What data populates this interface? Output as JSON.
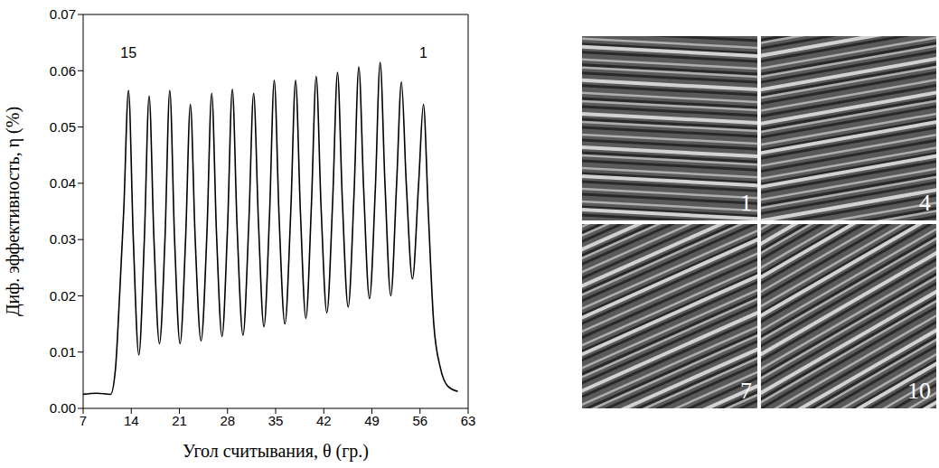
{
  "chart_data": {
    "type": "line",
    "x_label": "Угол считывания, θ (гр.)",
    "y_label": "Диф. эффективность, η (%)",
    "color": "#000000",
    "grid": false,
    "xlim": [
      7,
      63
    ],
    "xticks": [
      7,
      14,
      21,
      28,
      35,
      42,
      49,
      56,
      63
    ],
    "ylim": [
      0,
      0.07
    ],
    "yticks": [
      {
        "value": 0,
        "label": "0.00"
      },
      0.01,
      0.02,
      0.03,
      0.04,
      0.05,
      0.06,
      0.07
    ],
    "x": [
      7,
      9,
      11,
      11.7,
      12.3,
      12.9,
      13.6,
      14.3,
      15.1,
      15.9,
      16.6,
      17.3,
      18.1,
      18.9,
      19.6,
      20.3,
      21.1,
      21.9,
      22.6,
      23.3,
      24.15,
      25.0,
      25.7,
      26.4,
      27.2,
      28.0,
      28.7,
      29.4,
      30.25,
      31.1,
      31.8,
      32.5,
      33.3,
      34.1,
      34.8,
      35.5,
      36.35,
      37.2,
      37.9,
      38.6,
      39.4,
      40.2,
      40.9,
      41.6,
      42.45,
      43.3,
      44.0,
      44.7,
      45.55,
      46.4,
      47.1,
      47.8,
      48.65,
      49.5,
      50.2,
      50.9,
      51.75,
      52.6,
      53.3,
      54.0,
      54.9,
      55.8,
      56.5,
      57.2,
      58.0,
      59.0,
      60.0,
      61.5
    ],
    "values": [
      0.0025,
      0.0027,
      0.0025,
      0.007,
      0.02,
      0.035,
      0.0565,
      0.03,
      0.0095,
      0.03,
      0.0555,
      0.03,
      0.0115,
      0.03,
      0.0565,
      0.03,
      0.0115,
      0.03,
      0.054,
      0.03,
      0.012,
      0.031,
      0.056,
      0.031,
      0.0128,
      0.032,
      0.0567,
      0.032,
      0.013,
      0.033,
      0.056,
      0.033,
      0.0145,
      0.034,
      0.0583,
      0.034,
      0.015,
      0.035,
      0.0583,
      0.035,
      0.016,
      0.036,
      0.059,
      0.036,
      0.017,
      0.037,
      0.0597,
      0.037,
      0.018,
      0.038,
      0.0607,
      0.039,
      0.0195,
      0.039,
      0.0615,
      0.04,
      0.02,
      0.04,
      0.058,
      0.04,
      0.023,
      0.04,
      0.054,
      0.035,
      0.015,
      0.007,
      0.004,
      0.003
    ],
    "annotations": [
      {
        "text": "15",
        "x": 13.6,
        "y": 0.0615
      },
      {
        "text": "1",
        "x": 56.5,
        "y": 0.0615
      }
    ]
  },
  "images": [
    {
      "label": "1"
    },
    {
      "label": "4"
    },
    {
      "label": "7"
    },
    {
      "label": "10"
    }
  ]
}
